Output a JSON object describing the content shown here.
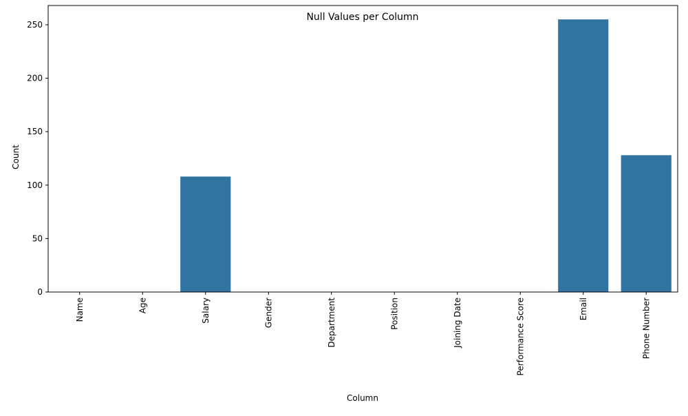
{
  "chart_data": {
    "type": "bar",
    "title": "Null Values per Column",
    "xlabel": "Column",
    "ylabel": "Count",
    "categories": [
      "Name",
      "Age",
      "Salary",
      "Gender",
      "Department",
      "Position",
      "Joining Date",
      "Performance Score",
      "Email",
      "Phone Number"
    ],
    "values": [
      0,
      0,
      108,
      0,
      0,
      0,
      0,
      0,
      255,
      128
    ],
    "ylim": [
      0,
      268
    ],
    "yticks": [
      0,
      50,
      100,
      150,
      200,
      250
    ],
    "bar_color": "#3274a1",
    "grid": false,
    "legend": "none"
  }
}
